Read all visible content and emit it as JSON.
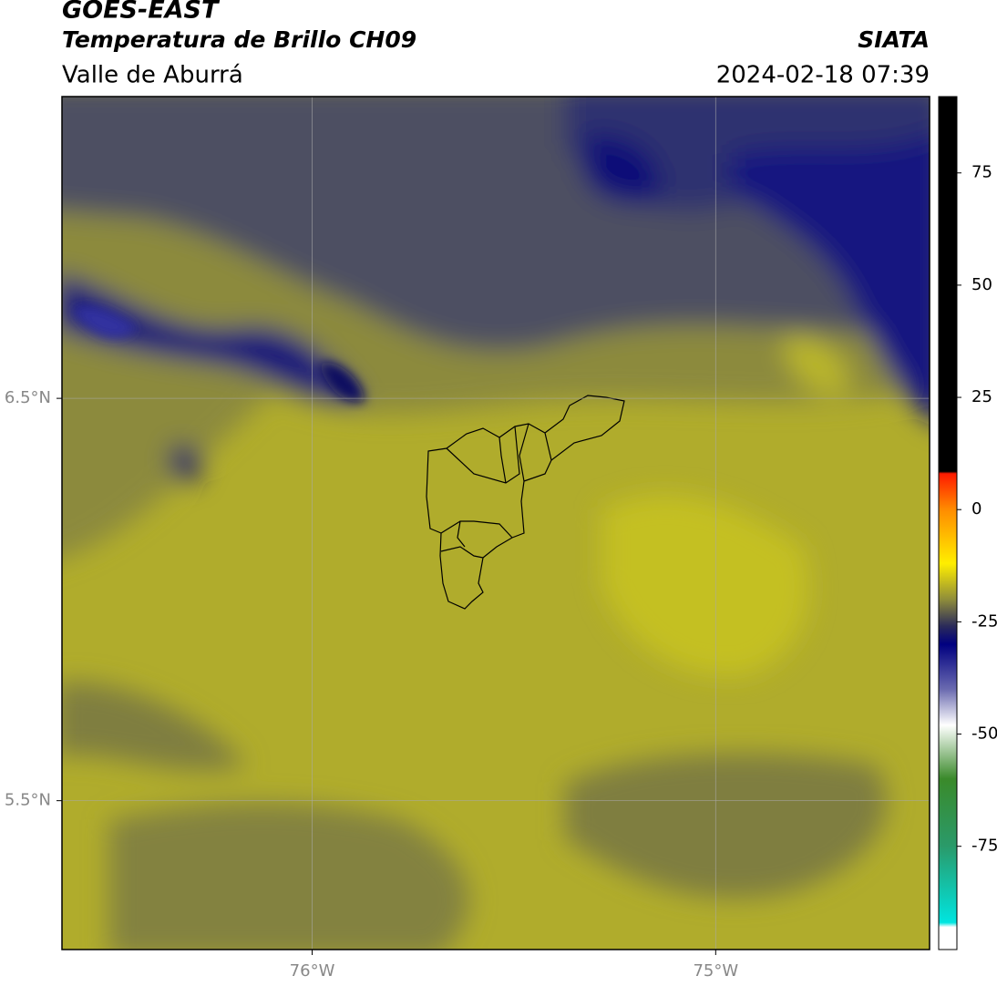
{
  "header": {
    "title": "GOES-EAST",
    "subtitle": "Temperatura de Brillo CH09",
    "region": "Valle de Aburrá",
    "source": "SIATA",
    "datetime": "2024-02-18 07:39"
  },
  "map": {
    "xlim": [
      -76.62,
      -74.47
    ],
    "ylim": [
      5.13,
      7.25
    ],
    "xticks": [
      {
        "value": -76,
        "label": "76°W"
      },
      {
        "value": -75,
        "label": "75°W"
      }
    ],
    "yticks": [
      {
        "value": 6.5,
        "label": "6.5°N"
      },
      {
        "value": 5.5,
        "label": "5.5°N"
      }
    ],
    "grid": true
  },
  "colorbar": {
    "lim": [
      -98,
      92
    ],
    "ticks": [
      75,
      50,
      25,
      0,
      -25,
      -50,
      -75
    ],
    "stops": [
      {
        "value": 92,
        "color": "#000000"
      },
      {
        "value": 8.5,
        "color": "#000000"
      },
      {
        "value": 8,
        "color": "#ff1a00"
      },
      {
        "value": 0,
        "color": "#ff8c00"
      },
      {
        "value": -12,
        "color": "#ffee00"
      },
      {
        "value": -20,
        "color": "#8f8d3a"
      },
      {
        "value": -26,
        "color": "#2a2a5a"
      },
      {
        "value": -30,
        "color": "#000080"
      },
      {
        "value": -40,
        "color": "#6a6ab0"
      },
      {
        "value": -48,
        "color": "#ffffff"
      },
      {
        "value": -60,
        "color": "#3a8a2a"
      },
      {
        "value": -75,
        "color": "#2a9a6a"
      },
      {
        "value": -92,
        "color": "#00e5e0"
      },
      {
        "value": -93,
        "color": "#ffffff"
      },
      {
        "value": -98,
        "color": "#ffffff"
      }
    ]
  }
}
